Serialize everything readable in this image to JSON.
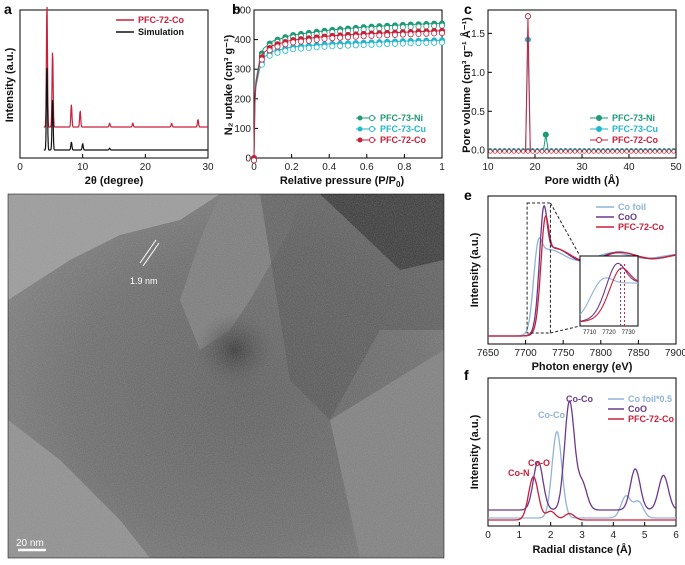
{
  "colors": {
    "red": "#c8203a",
    "black": "#111111",
    "green": "#1e9a74",
    "cyan": "#22b6cf",
    "lightblue": "#8fb3d9",
    "purple": "#6b3a8c"
  },
  "panels": {
    "a": {
      "label": "a",
      "xlabel": "2θ (degree)",
      "ylabel": "Intensity (a.u.)",
      "legend": [
        "PFC-72-Co",
        "Simulation"
      ]
    },
    "b": {
      "label": "b",
      "xlabel": "Relative pressure (P/P",
      "xlabel_sub": "0",
      "xlabel_end": ")",
      "ylabel": "N₂ uptake (cm³ g⁻¹)",
      "legend": [
        "PFC-73-Ni",
        "PFC-73-Cu",
        "PFC-72-Co"
      ]
    },
    "c": {
      "label": "c",
      "xlabel": "Pore width (Å)",
      "ylabel": "Pore volume (cm³ g⁻¹ Å⁻¹)",
      "legend": [
        "PFC-73-Ni",
        "PFC-73-Cu",
        "PFC-72-Co"
      ]
    },
    "d": {
      "label": "d",
      "scale_text": "1.9 nm",
      "scalebar_text": "20 nm"
    },
    "e": {
      "label": "e",
      "xlabel": "Photon energy (eV)",
      "ylabel": "Intensity (a.u.)",
      "legend": [
        "Co foil",
        "CoO",
        "PFC-72-Co"
      ]
    },
    "f": {
      "label": "f",
      "xlabel": "Radial distance (Å)",
      "ylabel": "Intensity (a.u.)",
      "legend": [
        "Co foil*0.5",
        "CoO",
        "PFC-72-Co"
      ],
      "annotations": [
        "Co-Co",
        "Co-Co",
        "Co-O",
        "Co-N"
      ]
    }
  },
  "chart_data": [
    {
      "panel": "a",
      "type": "line",
      "xlim": [
        0,
        30
      ],
      "xticks": [
        0,
        10,
        20,
        30
      ],
      "series": [
        {
          "name": "PFC-72-Co",
          "peaks": [
            [
              4.3,
              1.0
            ],
            [
              5.2,
              0.62
            ],
            [
              8.2,
              0.18
            ],
            [
              9.6,
              0.13
            ],
            [
              14.3,
              0.03
            ],
            [
              18.0,
              0.03
            ],
            [
              24.2,
              0.03
            ],
            [
              28.4,
              0.06
            ]
          ]
        },
        {
          "name": "Simulation",
          "peaks": [
            [
              4.3,
              0.95
            ],
            [
              5.2,
              0.58
            ],
            [
              8.2,
              0.09
            ],
            [
              10.0,
              0.07
            ],
            [
              14.3,
              0.02
            ]
          ]
        }
      ]
    },
    {
      "panel": "b",
      "type": "line",
      "xlim": [
        0.0,
        1.0
      ],
      "ylim": [
        0,
        500
      ],
      "xticks": [
        0.0,
        0.2,
        0.4,
        0.6,
        0.8,
        1.0
      ],
      "yticks": [
        0,
        100,
        200,
        300,
        400,
        500
      ],
      "series": [
        {
          "name": "PFC-73-Ni",
          "adsorption": [
            [
              0.0,
              0
            ],
            [
              0.005,
              200
            ],
            [
              0.01,
              260
            ],
            [
              0.03,
              330
            ],
            [
              0.05,
              370
            ],
            [
              0.1,
              395
            ],
            [
              0.2,
              415
            ],
            [
              0.4,
              432
            ],
            [
              0.6,
              443
            ],
            [
              0.8,
              450
            ],
            [
              1.0,
              455
            ]
          ]
        },
        {
          "name": "PFC-73-Cu",
          "adsorption": [
            [
              0.0,
              0
            ],
            [
              0.005,
              180
            ],
            [
              0.01,
              240
            ],
            [
              0.03,
              300
            ],
            [
              0.05,
              340
            ],
            [
              0.1,
              360
            ],
            [
              0.2,
              375
            ],
            [
              0.4,
              385
            ],
            [
              0.6,
              390
            ],
            [
              0.8,
              395
            ],
            [
              1.0,
              398
            ]
          ]
        },
        {
          "name": "PFC-72-Co",
          "adsorption": [
            [
              0.0,
              0
            ],
            [
              0.005,
              190
            ],
            [
              0.01,
              250
            ],
            [
              0.03,
              320
            ],
            [
              0.05,
              355
            ],
            [
              0.1,
              380
            ],
            [
              0.2,
              398
            ],
            [
              0.4,
              412
            ],
            [
              0.6,
              420
            ],
            [
              0.8,
              425
            ],
            [
              1.0,
              430
            ]
          ]
        }
      ]
    },
    {
      "panel": "c",
      "type": "line",
      "xlim": [
        10,
        50
      ],
      "ylim": [
        -0.1,
        1.8
      ],
      "xticks": [
        10,
        20,
        30,
        40,
        50
      ],
      "yticks": [
        0.0,
        0.5,
        1.0,
        1.5
      ],
      "series": [
        {
          "name": "PFC-73-Ni",
          "peak": [
            22.3,
            0.2
          ]
        },
        {
          "name": "PFC-73-Cu",
          "peak": [
            18.5,
            1.42
          ]
        },
        {
          "name": "PFC-72-Co",
          "peak": [
            18.5,
            1.72
          ]
        }
      ]
    },
    {
      "panel": "e",
      "type": "line",
      "xlim": [
        7650,
        7900
      ],
      "xticks": [
        7650,
        7700,
        7750,
        7800,
        7850,
        7900
      ],
      "inset": {
        "xlim": [
          7705,
          7735
        ],
        "xticks": [
          7710,
          7720,
          7730
        ]
      },
      "series": [
        {
          "name": "Co foil"
        },
        {
          "name": "CoO"
        },
        {
          "name": "PFC-72-Co"
        }
      ]
    },
    {
      "panel": "f",
      "type": "line",
      "xlim": [
        0,
        6
      ],
      "xticks": [
        0,
        1,
        2,
        3,
        4,
        5,
        6
      ],
      "series": [
        {
          "name": "Co foil*0.5",
          "peaks": [
            [
              2.2,
              0.8
            ],
            [
              4.4,
              0.2
            ],
            [
              4.8,
              0.15
            ]
          ]
        },
        {
          "name": "CoO",
          "peaks": [
            [
              1.6,
              0.45
            ],
            [
              2.6,
              1.0
            ],
            [
              3.0,
              0.25
            ],
            [
              4.7,
              0.38
            ],
            [
              5.6,
              0.32
            ]
          ]
        },
        {
          "name": "PFC-72-Co",
          "peaks": [
            [
              1.45,
              0.4
            ],
            [
              2.0,
              0.08
            ],
            [
              2.6,
              0.06
            ]
          ]
        }
      ]
    }
  ]
}
